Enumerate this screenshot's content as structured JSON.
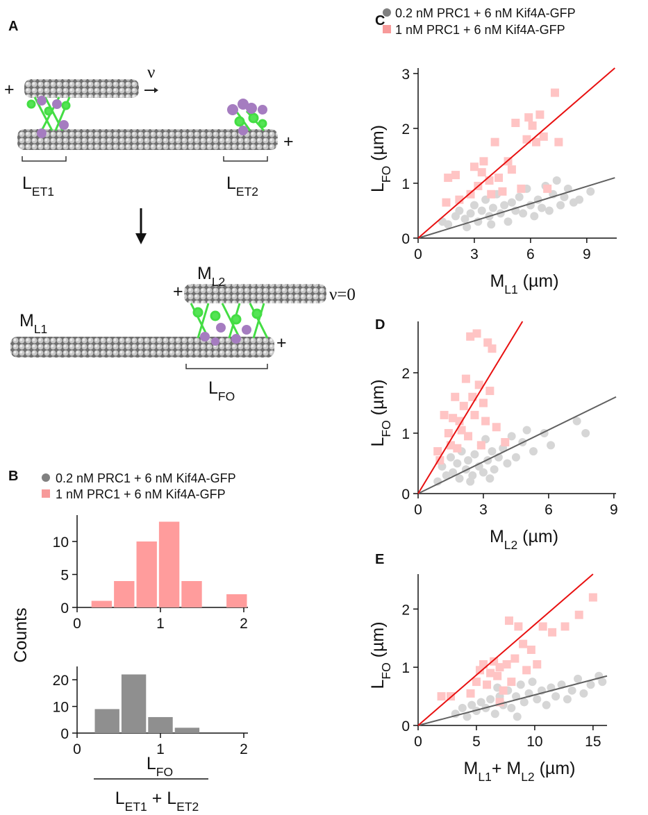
{
  "diagram": {
    "panel": "A",
    "velocity": "ν",
    "plus": "+",
    "stopped": "ν=0",
    "lengths": [
      [
        "L",
        "ET1"
      ],
      [
        "L",
        "ET2"
      ],
      [
        "L",
        "FO"
      ]
    ],
    "microtubules": [
      [
        "M",
        "L1"
      ],
      [
        "M",
        "L2"
      ]
    ]
  },
  "chart_data": [
    {
      "type": "histogram",
      "panel": "B",
      "legend": [
        {
          "name": "0.2 nM PRC1 + 6 nM Kif4A-GFP",
          "color": "#808080",
          "marker": "circle"
        },
        {
          "name": "1 nM  PRC1 + 6 nM Kif4A-GFP",
          "color": "#f79a9a",
          "marker": "square"
        }
      ],
      "bins": [
        0.16,
        0.43,
        0.7,
        0.97,
        1.24,
        1.51,
        1.78,
        2.05
      ],
      "values": [
        1,
        4,
        10,
        13,
        4,
        0,
        2
      ],
      "color": "#ff9c9c",
      "xlim": [
        0,
        2.05
      ],
      "xticks": [
        0,
        1,
        2
      ],
      "ylim": [
        0,
        14
      ],
      "yticks": [
        0,
        5,
        10
      ]
    },
    {
      "type": "histogram",
      "ylabel": "Counts",
      "xlabel": {
        "numerator": [
          "L",
          "FO"
        ],
        "denominator": [
          "L",
          "ET1",
          " + L",
          "ET2"
        ]
      },
      "bins": [
        0.2,
        0.52,
        0.84,
        1.16,
        1.48,
        1.8,
        2.12
      ],
      "values": [
        9,
        22,
        6,
        2,
        0,
        0
      ],
      "color": "#8f8f8f",
      "xlim": [
        0,
        2.05
      ],
      "xticks": [
        0,
        1,
        2
      ],
      "ylim": [
        0,
        25
      ],
      "yticks": [
        0,
        10,
        20
      ]
    },
    {
      "type": "scatter",
      "panel": "C",
      "xlabel": [
        "M",
        "L1",
        " (µm)"
      ],
      "ylabel": [
        "L",
        "FO",
        " (µm)"
      ],
      "xlim": [
        0,
        10.6
      ],
      "xticks": [
        0,
        3,
        6,
        9
      ],
      "ylim": [
        0,
        3.1
      ],
      "yticks": [
        0,
        1,
        2,
        3
      ],
      "series": [
        {
          "type": "scatter",
          "name": "0.2 nM PRC1 + 6 nM Kif4A-GFP",
          "color": "#d6d6d6",
          "marker": "circle",
          "x": [
            1.3,
            1.6,
            2,
            2.2,
            2.5,
            2.8,
            3,
            3.2,
            3.4,
            3.6,
            3.8,
            4,
            4.2,
            4.4,
            4.6,
            4.8,
            5,
            5.2,
            5.4,
            5.6,
            5.8,
            6,
            6.2,
            6.4,
            6.6,
            6.8,
            7,
            7.2,
            7.4,
            7.6,
            7.8,
            8,
            8.3,
            8.6,
            9.2,
            2.6,
            3.9
          ],
          "values": [
            0.3,
            0.25,
            0.4,
            0.5,
            0.35,
            0.45,
            0.6,
            0.3,
            0.5,
            0.7,
            0.4,
            0.55,
            0.8,
            0.45,
            0.6,
            0.3,
            0.65,
            0.5,
            0.75,
            0.45,
            0.9,
            0.6,
            0.4,
            0.7,
            0.55,
            0.95,
            0.5,
            0.8,
            1.05,
            0.6,
            0.75,
            0.9,
            0.65,
            0.7,
            0.85,
            0.2,
            0.25
          ]
        },
        {
          "type": "scatter",
          "name": "1 nM  PRC1 + 6 nM Kif4A-GFP",
          "color": "#ffc4c4",
          "marker": "square",
          "x": [
            1.5,
            1.6,
            2.0,
            2.2,
            2.8,
            3.0,
            3.2,
            3.4,
            3.5,
            3.8,
            3.9,
            4.1,
            4.3,
            4.5,
            4.8,
            5.0,
            5.2,
            5.5,
            5.8,
            6.1,
            6.3,
            6.5,
            6.7,
            6.9,
            7.3,
            7.5,
            5.9
          ],
          "values": [
            0.65,
            1.1,
            1.15,
            0.7,
            0.8,
            1.3,
            0.95,
            1.2,
            1.4,
            1.05,
            0.8,
            1.75,
            1.1,
            0.85,
            1.4,
            1.25,
            2.1,
            0.9,
            1.8,
            2.05,
            1.75,
            2.25,
            1.85,
            0.9,
            2.65,
            1.75,
            2.2
          ]
        },
        {
          "type": "line",
          "color": "#606060",
          "x": [
            0,
            10.5
          ],
          "values": [
            0,
            1.1
          ]
        },
        {
          "type": "line",
          "color": "#e81010",
          "x": [
            0,
            10.5
          ],
          "values": [
            0,
            3.1
          ]
        }
      ]
    },
    {
      "type": "scatter",
      "panel": "D",
      "xlabel": [
        "M",
        "L2",
        " (µm)"
      ],
      "ylabel": [
        "L",
        "FO",
        " (µm)"
      ],
      "xlim": [
        0,
        9.1
      ],
      "xticks": [
        0,
        3,
        6,
        9
      ],
      "ylim": [
        0,
        2.85
      ],
      "yticks": [
        0,
        1,
        2
      ],
      "series": [
        {
          "type": "scatter",
          "color": "#d6d6d6",
          "marker": "circle",
          "x": [
            0.9,
            1.1,
            1.3,
            1.5,
            1.6,
            1.8,
            1.9,
            2.0,
            2.2,
            2.3,
            2.5,
            2.6,
            2.8,
            2.9,
            3.0,
            3.1,
            3.2,
            3.4,
            3.5,
            3.7,
            3.9,
            4.1,
            4.3,
            4.5,
            4.8,
            5.0,
            5.3,
            5.8,
            6.1,
            7.3,
            7.7,
            2.4,
            3.3
          ],
          "values": [
            0.2,
            0.45,
            0.3,
            0.6,
            0.35,
            0.5,
            0.25,
            0.7,
            0.4,
            0.55,
            0.3,
            0.65,
            0.45,
            0.8,
            0.35,
            0.9,
            0.55,
            0.7,
            0.4,
            0.6,
            0.75,
            0.5,
            0.95,
            0.6,
            0.85,
            1.05,
            0.7,
            1.0,
            0.8,
            1.2,
            1.0,
            0.2,
            0.25
          ]
        },
        {
          "type": "scatter",
          "color": "#ffc4c4",
          "marker": "square",
          "x": [
            0.9,
            1.0,
            1.2,
            1.4,
            1.5,
            1.6,
            1.7,
            1.8,
            1.9,
            2.0,
            2.1,
            2.2,
            2.3,
            2.4,
            2.5,
            2.6,
            2.7,
            2.8,
            2.9,
            3.0,
            3.1,
            3.2,
            3.4,
            3.6,
            4.0,
            3.3
          ],
          "values": [
            0.7,
            0.55,
            1.3,
            1.0,
            0.8,
            1.25,
            1.6,
            0.75,
            1.2,
            1.05,
            1.45,
            1.9,
            0.95,
            2.6,
            1.6,
            1.3,
            2.65,
            1.8,
            0.8,
            1.5,
            1.2,
            2.5,
            2.4,
            1.1,
            0.85,
            1.7
          ]
        },
        {
          "type": "line",
          "color": "#606060",
          "x": [
            0,
            9.1
          ],
          "values": [
            0,
            1.6
          ]
        },
        {
          "type": "line",
          "color": "#e81010",
          "x": [
            0,
            4.8
          ],
          "values": [
            0,
            2.85
          ]
        }
      ]
    },
    {
      "type": "scatter",
      "panel": "E",
      "xlabel": [
        "M",
        "L1",
        "+ M",
        "L2",
        " (µm)"
      ],
      "ylabel": [
        "L",
        "FO",
        " (µm)"
      ],
      "xlim": [
        0,
        16.2
      ],
      "xticks": [
        0,
        5,
        10,
        15
      ],
      "ylim": [
        0,
        2.6
      ],
      "yticks": [
        0,
        1,
        2
      ],
      "series": [
        {
          "type": "scatter",
          "color": "#d6d6d6",
          "marker": "circle",
          "x": [
            3.2,
            3.8,
            4.2,
            4.6,
            5.0,
            5.4,
            5.8,
            6.2,
            6.6,
            7.0,
            7.3,
            7.7,
            8.0,
            8.4,
            8.8,
            9.1,
            9.5,
            9.8,
            10.2,
            10.6,
            11.0,
            11.4,
            11.8,
            12.3,
            12.8,
            13.2,
            13.7,
            14.2,
            14.8,
            15.5,
            15.8,
            6.8,
            8.5
          ],
          "values": [
            0.2,
            0.3,
            0.15,
            0.35,
            0.25,
            0.4,
            0.3,
            0.45,
            0.2,
            0.5,
            0.35,
            0.6,
            0.3,
            0.5,
            0.7,
            0.4,
            0.55,
            0.75,
            0.45,
            0.6,
            0.35,
            0.65,
            0.5,
            0.7,
            0.45,
            0.6,
            0.8,
            0.55,
            0.7,
            0.85,
            0.75,
            0.65,
            0.15
          ]
        },
        {
          "type": "scatter",
          "color": "#ffc4c4",
          "marker": "square",
          "x": [
            2.0,
            2.8,
            4.5,
            5.0,
            5.3,
            5.6,
            5.9,
            6.2,
            6.5,
            6.8,
            7.0,
            7.3,
            7.6,
            7.8,
            8.0,
            8.3,
            8.6,
            9.0,
            9.3,
            9.7,
            10.2,
            10.7,
            11.5,
            12.6,
            13.8,
            15.0,
            7.0
          ],
          "values": [
            0.5,
            0.5,
            0.55,
            0.75,
            0.95,
            1.05,
            0.7,
            0.9,
            1.1,
            0.85,
            1.0,
            0.6,
            1.05,
            1.8,
            0.75,
            1.15,
            1.7,
            1.4,
            0.95,
            1.3,
            1.05,
            1.7,
            1.6,
            1.7,
            1.9,
            2.2,
            0.4
          ]
        },
        {
          "type": "line",
          "color": "#606060",
          "x": [
            0,
            16.2
          ],
          "values": [
            0,
            0.85
          ]
        },
        {
          "type": "line",
          "color": "#e81010",
          "x": [
            0,
            15
          ],
          "values": [
            0,
            2.6
          ]
        }
      ]
    }
  ]
}
